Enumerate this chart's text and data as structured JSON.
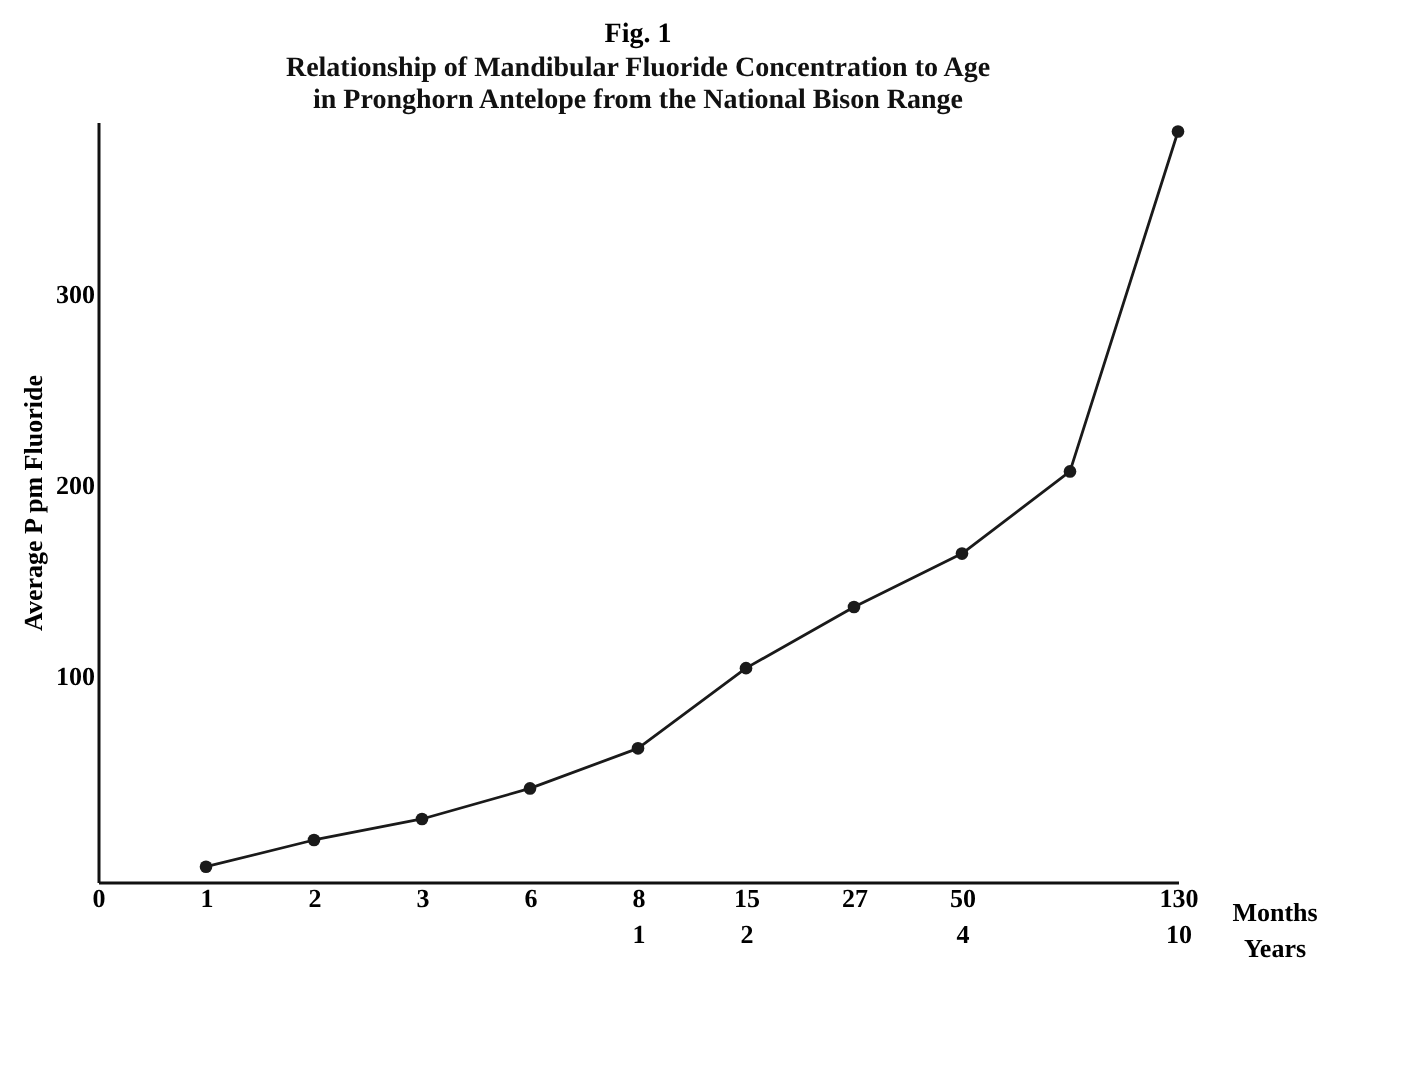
{
  "chart_data": {
    "type": "line",
    "title": "Fig. 1",
    "subtitle": "Relationship of Mandibular Fluoride Concentration to Age\nin Pronghorn Antelope from the National Bison Range",
    "xlabel": "Months\nYears",
    "ylabel": "Average P pm Fluoride",
    "categories": [
      "0",
      "1",
      "2",
      "3",
      "6",
      "8\n1",
      "15\n2",
      "27",
      "50\n4",
      null,
      "130\n10"
    ],
    "series": [
      {
        "color": "#1a1a1a",
        "values": [
          null,
          0,
          14,
          25,
          41,
          62,
          104,
          136,
          164,
          207,
          385
        ]
      }
    ],
    "ylim": [
      -8,
      390
    ],
    "yticks": [
      100,
      200,
      300
    ],
    "marker": "circle",
    "line_style": "solid",
    "grid": false
  }
}
